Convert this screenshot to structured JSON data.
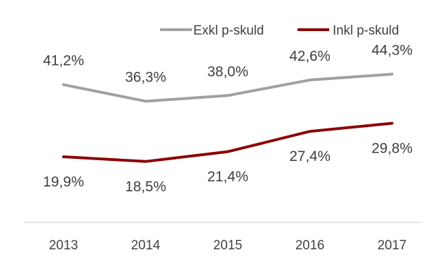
{
  "chart_data": {
    "type": "line",
    "categories": [
      "2013",
      "2014",
      "2015",
      "2016",
      "2017"
    ],
    "series": [
      {
        "name": "Exkl p-skuld",
        "values": [
          41.2,
          36.3,
          38.0,
          42.6,
          44.3
        ],
        "labels": [
          "41,2%",
          "36,3%",
          "38,0%",
          "42,6%",
          "44,3%"
        ],
        "color": "#a0a0a0",
        "label_position": "above"
      },
      {
        "name": "Inkl p-skuld",
        "values": [
          19.9,
          18.5,
          21.4,
          27.4,
          29.8
        ],
        "labels": [
          "19,9%",
          "18,5%",
          "21,4%",
          "27,4%",
          "29,8%"
        ],
        "color": "#8b0000",
        "label_position": "below"
      }
    ],
    "ylim": [
      5,
      55
    ],
    "grid": false,
    "legend_position": "top-right",
    "axis_color": "#dcdcdc",
    "text_color": "#404040"
  }
}
